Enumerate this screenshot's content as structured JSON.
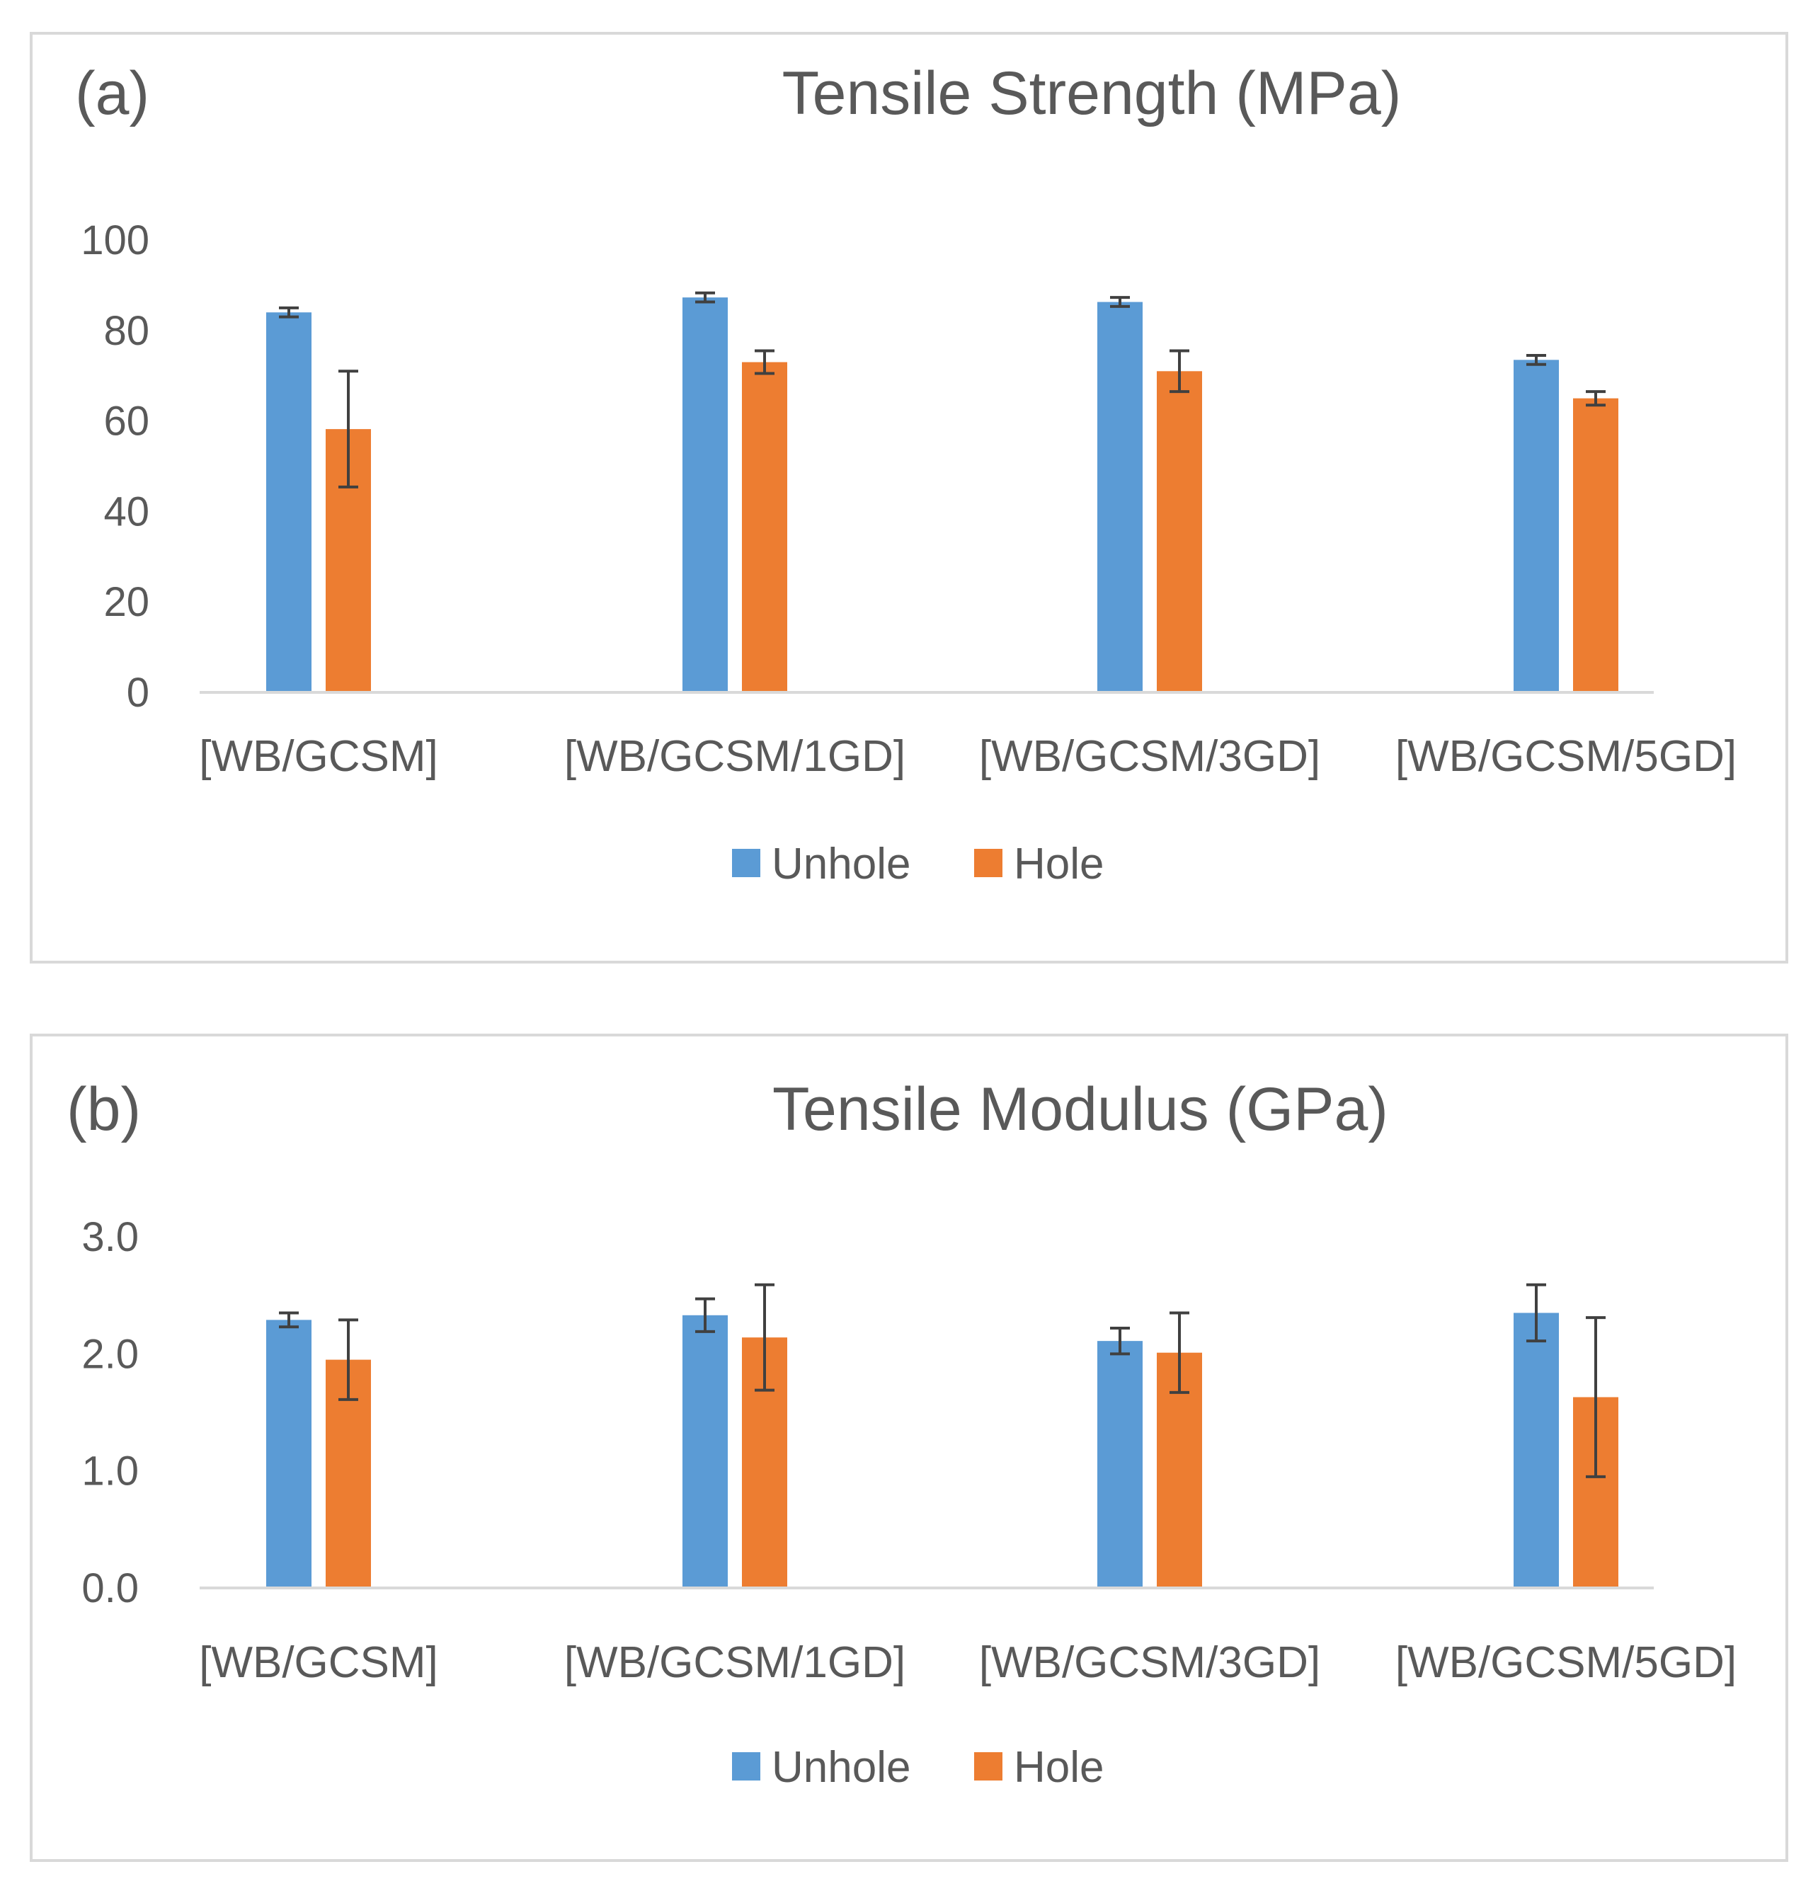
{
  "colors": {
    "unhole": "#5b9bd5",
    "hole": "#ed7d31",
    "error_bar": "#404040",
    "axis": "#d9d9d9",
    "text": "#595959"
  },
  "legend": {
    "items": [
      {
        "label": "Unhole",
        "color": "#5b9bd5"
      },
      {
        "label": "Hole",
        "color": "#ed7d31"
      }
    ]
  },
  "chart_data": [
    {
      "type": "bar",
      "panel_label": "(a)",
      "title": "Tensile Strength (MPa)",
      "categories": [
        "[WB/GCSM]",
        "[WB/GCSM/1GD]",
        "[WB/GCSM/3GD]",
        "[WB/GCSM/5GD]"
      ],
      "ylim": [
        0,
        100
      ],
      "ytick_labels": [
        "0",
        "20",
        "40",
        "60",
        "80",
        "100"
      ],
      "yticks": [
        0,
        20,
        40,
        60,
        80,
        100
      ],
      "gridlines": false,
      "legend_position": "bottom",
      "series": [
        {
          "name": "Unhole",
          "values": [
            84,
            87.3,
            86.3,
            73.5
          ],
          "errors": [
            1,
            1,
            1,
            1
          ]
        },
        {
          "name": "Hole",
          "values": [
            58.2,
            73,
            71,
            65
          ],
          "errors": [
            12.8,
            2.5,
            4.5,
            1.5
          ]
        }
      ]
    },
    {
      "type": "bar",
      "panel_label": "(b)",
      "title": "Tensile Modulus (GPa)",
      "categories": [
        "[WB/GCSM]",
        "[WB/GCSM/1GD]",
        "[WB/GCSM/3GD]",
        "[WB/GCSM/5GD]"
      ],
      "ylim": [
        0,
        3
      ],
      "ytick_labels": [
        "0.0",
        "1.0",
        "2.0",
        "3.0"
      ],
      "yticks": [
        0,
        1,
        2,
        3
      ],
      "gridlines": false,
      "legend_position": "bottom",
      "series": [
        {
          "name": "Unhole",
          "values": [
            2.29,
            2.33,
            2.11,
            2.35
          ],
          "errors": [
            0.06,
            0.14,
            0.11,
            0.24
          ]
        },
        {
          "name": "Hole",
          "values": [
            1.95,
            2.14,
            2.01,
            1.63
          ],
          "errors": [
            0.34,
            0.45,
            0.34,
            0.68
          ]
        }
      ]
    }
  ]
}
